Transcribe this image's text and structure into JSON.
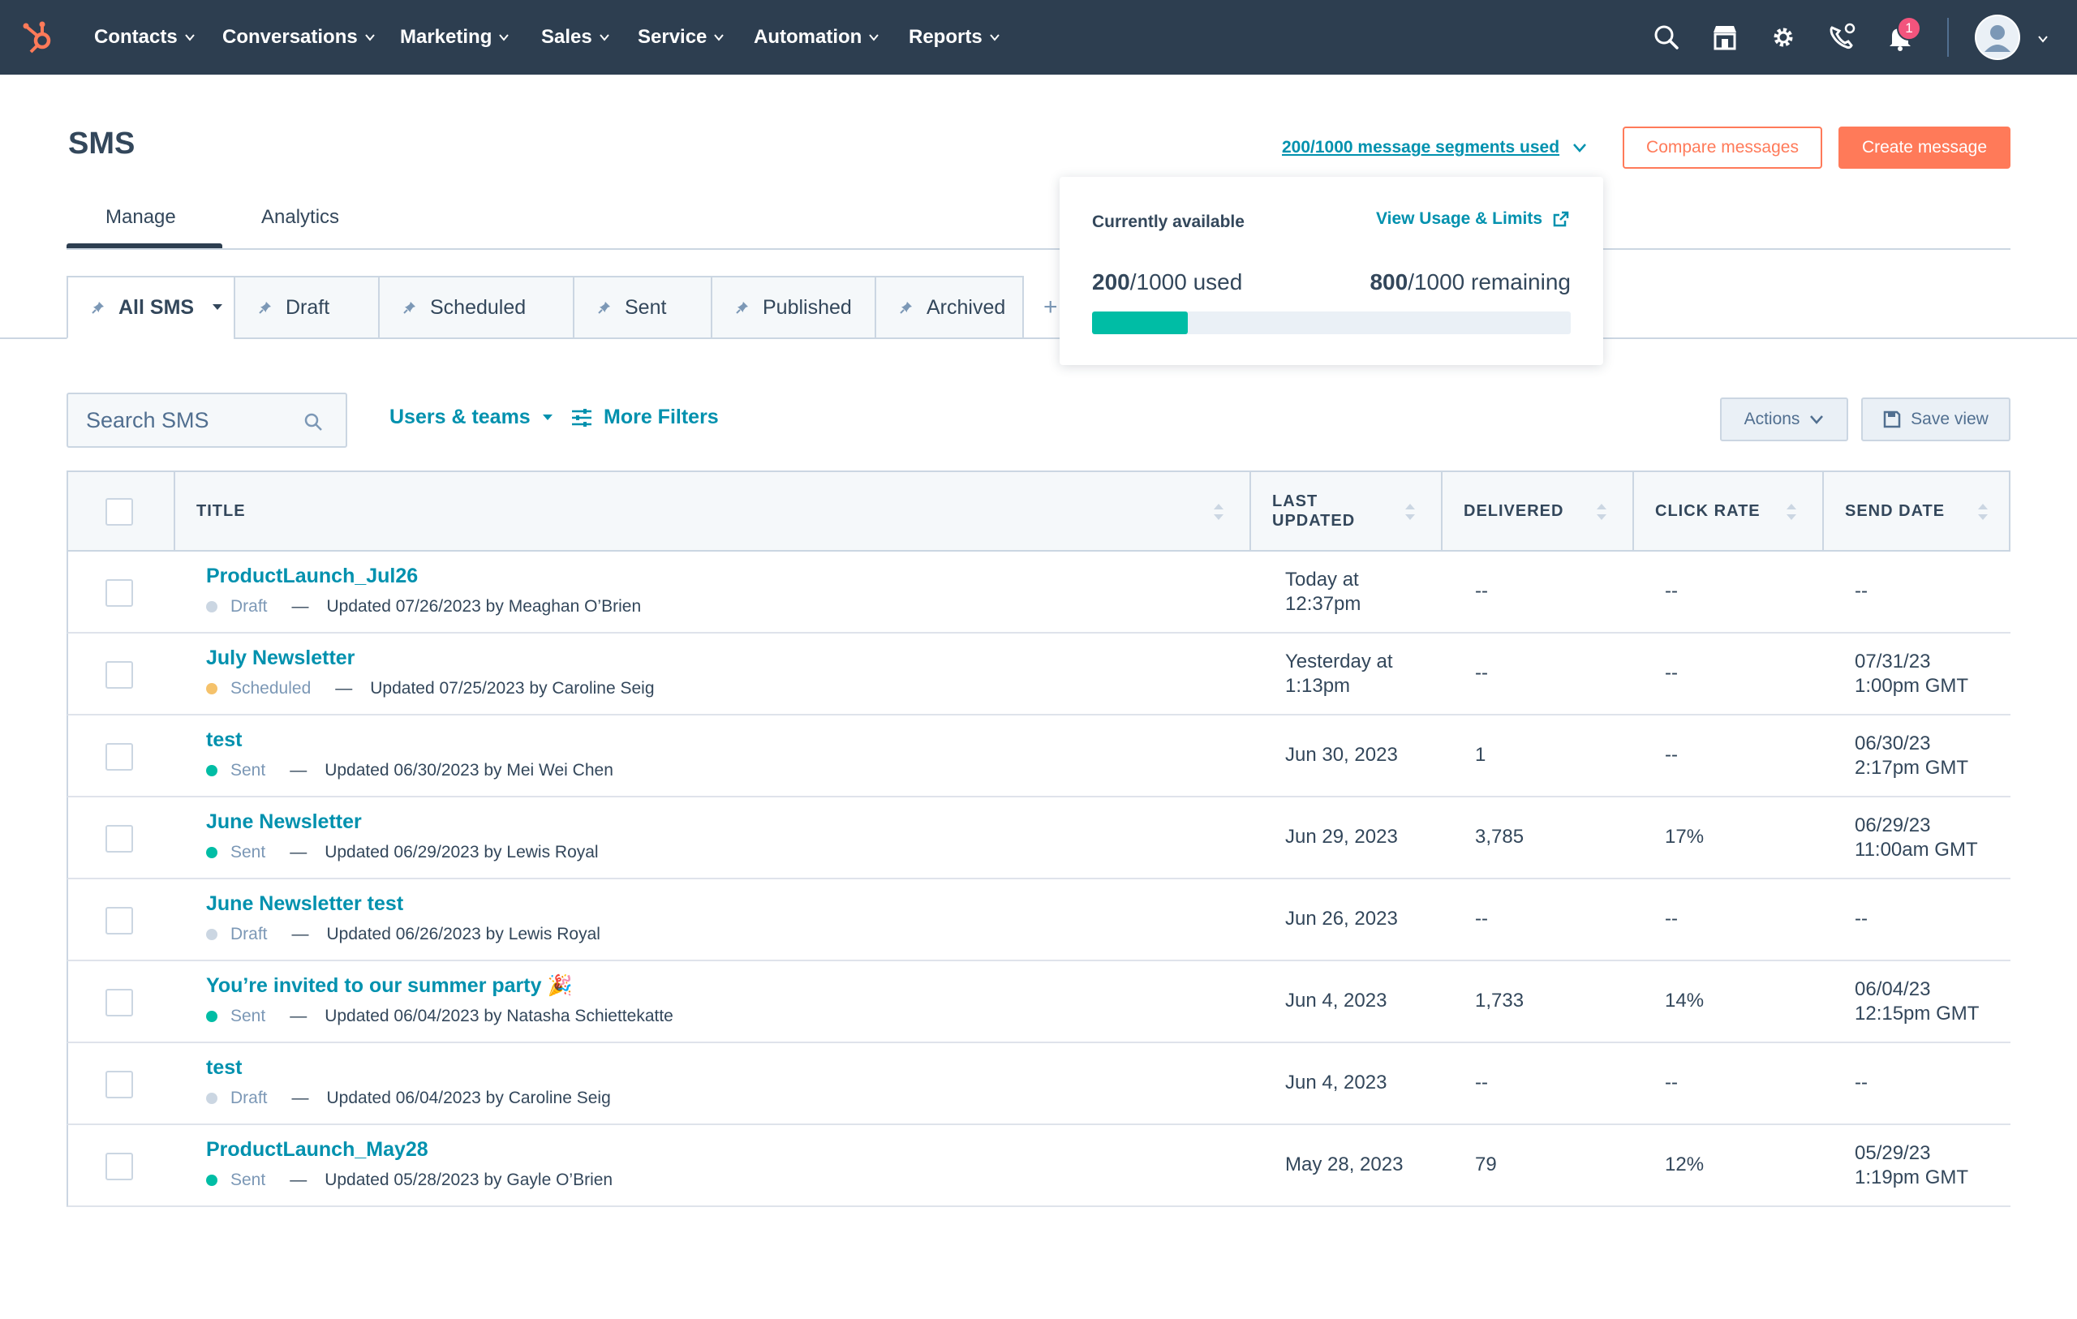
{
  "nav": {
    "items": [
      "Contacts",
      "Conversations",
      "Marketing",
      "Sales",
      "Service",
      "Automation",
      "Reports"
    ],
    "notification_count": "1",
    "colors": {
      "bg": "#2d3e50",
      "accent": "#ff7a59"
    }
  },
  "header": {
    "title": "SMS",
    "segments_link": "200/1000 message segments used",
    "compare_button": "Compare messages",
    "create_button": "Create message"
  },
  "tabs": {
    "manage": "Manage",
    "analytics": "Analytics"
  },
  "views": [
    "All SMS",
    "Draft",
    "Scheduled",
    "Sent",
    "Published",
    "Archived"
  ],
  "popover": {
    "title": "Currently available",
    "link": "View Usage & Limits",
    "used_value": "200",
    "used_suffix": "/1000 used",
    "remaining_value": "800",
    "remaining_suffix": "/1000 remaining",
    "usage_fraction": 0.2
  },
  "filters": {
    "search_placeholder": "Search SMS",
    "users_teams": "Users & teams",
    "more_filters": "More Filters",
    "actions": "Actions",
    "save_view": "Save view"
  },
  "table": {
    "columns": {
      "title": "TITLE",
      "last_updated_1": "LAST",
      "last_updated_2": "UPDATED",
      "delivered": "DELIVERED",
      "click_rate": "CLICK RATE",
      "send_date": "SEND DATE"
    },
    "rows": [
      {
        "title": "ProductLaunch_Jul26",
        "status": "Draft",
        "status_color": "#cbd6e2",
        "updated": "Updated 07/26/2023 by Meaghan O’Brien",
        "last_updated_1": "Today at",
        "last_updated_2": "12:37pm",
        "delivered": "--",
        "click_rate": "--",
        "send_date_1": "--",
        "send_date_2": ""
      },
      {
        "title": "July Newsletter",
        "status": "Scheduled",
        "status_color": "#f5c26b",
        "updated": "Updated 07/25/2023 by Caroline Seig",
        "last_updated_1": "Yesterday at",
        "last_updated_2": "1:13pm",
        "delivered": "--",
        "click_rate": "--",
        "send_date_1": "07/31/23",
        "send_date_2": "1:00pm GMT"
      },
      {
        "title": "test",
        "status": "Sent",
        "status_color": "#00bda5",
        "updated": "Updated 06/30/2023 by Mei Wei Chen",
        "last_updated_1": "Jun 30, 2023",
        "last_updated_2": "",
        "delivered": "1",
        "click_rate": "--",
        "send_date_1": "06/30/23",
        "send_date_2": "2:17pm GMT"
      },
      {
        "title": "June Newsletter",
        "status": "Sent",
        "status_color": "#00bda5",
        "updated": "Updated 06/29/2023 by Lewis Royal",
        "last_updated_1": "Jun 29, 2023",
        "last_updated_2": "",
        "delivered": "3,785",
        "click_rate": "17%",
        "send_date_1": "06/29/23",
        "send_date_2": "11:00am GMT"
      },
      {
        "title": "June Newsletter test",
        "status": "Draft",
        "status_color": "#cbd6e2",
        "updated": "Updated 06/26/2023 by Lewis Royal",
        "last_updated_1": "Jun 26, 2023",
        "last_updated_2": "",
        "delivered": "--",
        "click_rate": "--",
        "send_date_1": "--",
        "send_date_2": ""
      },
      {
        "title": "You’re invited to our summer party 🎉",
        "status": "Sent",
        "status_color": "#00bda5",
        "updated": "Updated 06/04/2023 by Natasha Schiettekatte",
        "last_updated_1": "Jun 4, 2023",
        "last_updated_2": "",
        "delivered": "1,733",
        "click_rate": "14%",
        "send_date_1": "06/04/23",
        "send_date_2": "12:15pm GMT"
      },
      {
        "title": "test",
        "status": "Draft",
        "status_color": "#cbd6e2",
        "updated": "Updated 06/04/2023 by Caroline Seig",
        "last_updated_1": "Jun 4, 2023",
        "last_updated_2": "",
        "delivered": "--",
        "click_rate": "--",
        "send_date_1": "--",
        "send_date_2": ""
      },
      {
        "title": "ProductLaunch_May28",
        "status": "Sent",
        "status_color": "#00bda5",
        "updated": "Updated 05/28/2023 by Gayle O’Brien",
        "last_updated_1": "May 28, 2023",
        "last_updated_2": "",
        "delivered": "79",
        "click_rate": "12%",
        "send_date_1": "05/29/23",
        "send_date_2": "1:19pm GMT"
      }
    ]
  }
}
